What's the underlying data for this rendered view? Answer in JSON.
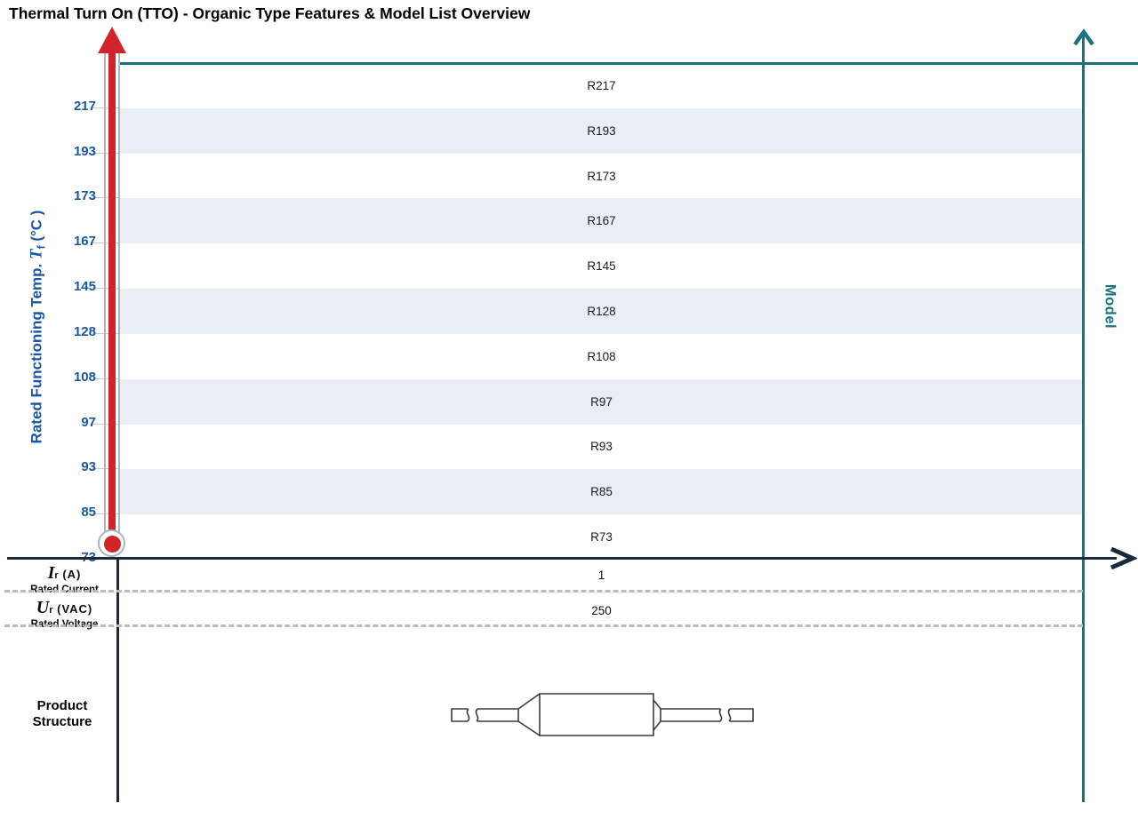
{
  "title": "Thermal Turn On (TTO) - Organic Type Features & Model List Overview",
  "y_axis": {
    "prefix": "Rated Functioning Temp. ",
    "symbol": "T",
    "subscript": "f",
    "suffix": " (°C )"
  },
  "right_axis_label": "Model",
  "chart_data": {
    "type": "table",
    "title": "Thermal Turn On (TTO) - Organic Type Features & Model List Overview",
    "ylabel": "Rated Functioning Temp. Tf (°C)",
    "right_axis_label": "Model",
    "rows": [
      {
        "temp": "217",
        "model": "R217"
      },
      {
        "temp": "193",
        "model": "R193"
      },
      {
        "temp": "173",
        "model": "R173"
      },
      {
        "temp": "167",
        "model": "R167"
      },
      {
        "temp": "145",
        "model": "R145"
      },
      {
        "temp": "128",
        "model": "R128"
      },
      {
        "temp": "108",
        "model": "R108"
      },
      {
        "temp": "97",
        "model": "R97"
      },
      {
        "temp": "93",
        "model": "R93"
      },
      {
        "temp": "85",
        "model": "R85"
      },
      {
        "temp": "73",
        "model": "R73"
      }
    ],
    "specs": [
      {
        "symbol": "I",
        "subscript": "r",
        "unit": "(A)",
        "label": "Rated Current",
        "value": "1"
      },
      {
        "symbol": "U",
        "subscript": "r",
        "unit": "(VAC)",
        "label": "Rated Voltage",
        "value": "250"
      }
    ],
    "product_structure": {
      "line1": "Product",
      "line2": "Structure"
    },
    "layout": {
      "grid": "off",
      "row_band_alternating": true
    }
  },
  "colors": {
    "thermometer_red": "#d2232a",
    "axis_navy": "#182940",
    "model_axis_teal": "#16737f",
    "temp_label_blue": "#1a57a3",
    "row_band_blue": "#e9eef6"
  }
}
